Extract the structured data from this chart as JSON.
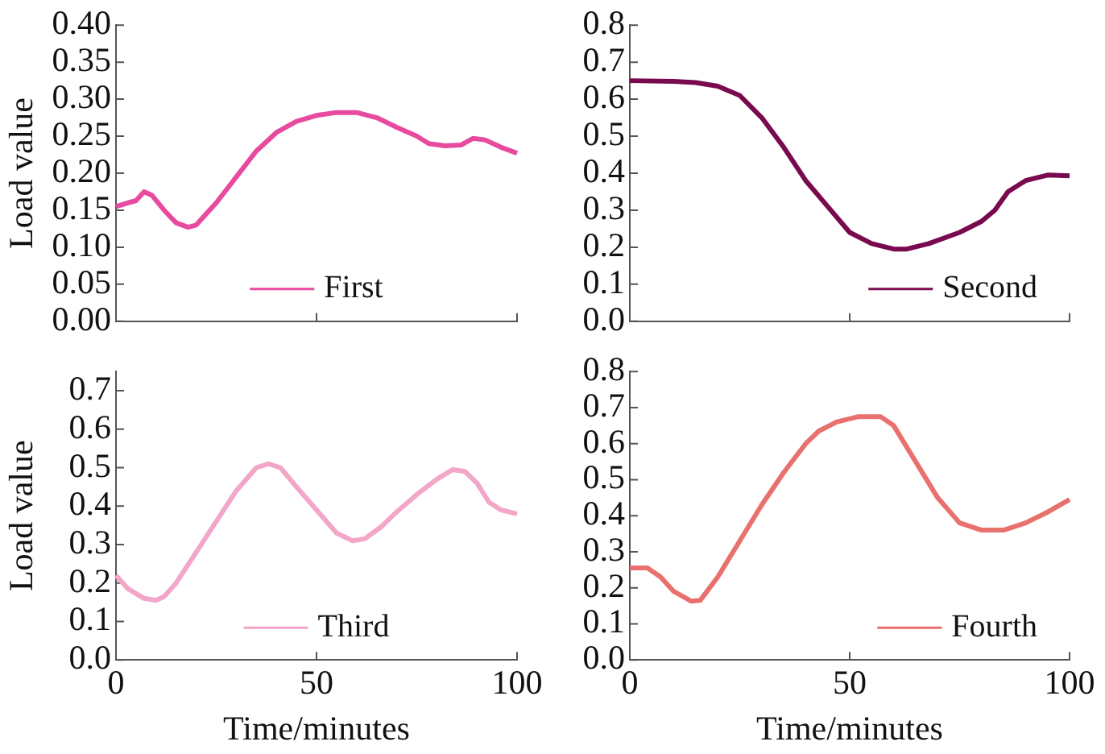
{
  "chart_data": [
    {
      "type": "line",
      "ylabel": "Load value",
      "xlim": [
        0,
        100
      ],
      "xticks": [
        0,
        50,
        100
      ],
      "ylim": [
        0,
        0.4
      ],
      "yticks": [
        {
          "value": 0,
          "label": "0.00"
        },
        {
          "value": 0.05,
          "label": "0.05"
        },
        {
          "value": 0.1,
          "label": "0.10"
        },
        {
          "value": 0.15,
          "label": "0.15"
        },
        {
          "value": 0.2,
          "label": "0.20"
        },
        {
          "value": 0.25,
          "label": "0.25"
        },
        {
          "value": 0.3,
          "label": "0.30"
        },
        {
          "value": 0.35,
          "label": "0.35"
        },
        {
          "value": 0.4,
          "label": "0.40"
        }
      ],
      "tick_labels": "y",
      "grid": false,
      "legend": "bottom",
      "marker": "none",
      "x": [
        0,
        3,
        5,
        7,
        9,
        12,
        15,
        18,
        20,
        25,
        30,
        35,
        40,
        45,
        50,
        55,
        60,
        65,
        70,
        75,
        78,
        82,
        86,
        89,
        92,
        96,
        100
      ],
      "series": [
        {
          "name": "First",
          "color": "#e84a9f",
          "values": [
            0.155,
            0.16,
            0.163,
            0.175,
            0.17,
            0.15,
            0.133,
            0.127,
            0.13,
            0.16,
            0.195,
            0.23,
            0.255,
            0.27,
            0.278,
            0.282,
            0.282,
            0.275,
            0.262,
            0.25,
            0.24,
            0.237,
            0.238,
            0.247,
            0.245,
            0.235,
            0.227
          ]
        }
      ]
    },
    {
      "type": "line",
      "xlim": [
        0,
        100
      ],
      "xticks": [
        0,
        50,
        100
      ],
      "ylim": [
        0,
        0.8
      ],
      "yticks": [
        {
          "value": 0,
          "label": "0.0"
        },
        {
          "value": 0.1,
          "label": "0.1"
        },
        {
          "value": 0.2,
          "label": "0.2"
        },
        {
          "value": 0.3,
          "label": "0.3"
        },
        {
          "value": 0.4,
          "label": "0.4"
        },
        {
          "value": 0.5,
          "label": "0.5"
        },
        {
          "value": 0.6,
          "label": "0.6"
        },
        {
          "value": 0.7,
          "label": "0.7"
        },
        {
          "value": 0.8,
          "label": "0.8"
        }
      ],
      "tick_labels": "y",
      "grid": false,
      "legend": "bottom right",
      "marker": "none",
      "x": [
        0,
        10,
        15,
        20,
        25,
        30,
        35,
        40,
        45,
        50,
        55,
        60,
        63,
        68,
        75,
        80,
        83,
        86,
        90,
        95,
        100
      ],
      "series": [
        {
          "name": "Second",
          "color": "#7a0a4f",
          "values": [
            0.65,
            0.648,
            0.645,
            0.635,
            0.61,
            0.55,
            0.47,
            0.38,
            0.31,
            0.24,
            0.21,
            0.195,
            0.195,
            0.21,
            0.24,
            0.27,
            0.3,
            0.35,
            0.38,
            0.395,
            0.393
          ]
        }
      ]
    },
    {
      "type": "line",
      "ylabel": "Load value",
      "xlabel": "Time/minutes",
      "xlim": [
        0,
        100
      ],
      "xticks": [
        0,
        50,
        100
      ],
      "ylim": [
        0,
        0.75
      ],
      "yticks": [
        {
          "value": 0,
          "label": "0.0"
        },
        {
          "value": 0.1,
          "label": "0.1"
        },
        {
          "value": 0.2,
          "label": "0.2"
        },
        {
          "value": 0.3,
          "label": "0.3"
        },
        {
          "value": 0.4,
          "label": "0.4"
        },
        {
          "value": 0.5,
          "label": "0.5"
        },
        {
          "value": 0.6,
          "label": "0.6"
        },
        {
          "value": 0.7,
          "label": "0.7"
        }
      ],
      "grid": false,
      "legend": "bottom",
      "marker": "none",
      "x": [
        0,
        3,
        7,
        10,
        12,
        15,
        20,
        25,
        30,
        35,
        38,
        41,
        45,
        50,
        55,
        59,
        62,
        66,
        70,
        75,
        80,
        84,
        87,
        90,
        93,
        96,
        100
      ],
      "series": [
        {
          "name": "Third",
          "color": "#f2a6c8",
          "values": [
            0.22,
            0.185,
            0.16,
            0.155,
            0.165,
            0.2,
            0.28,
            0.36,
            0.44,
            0.5,
            0.51,
            0.5,
            0.45,
            0.39,
            0.33,
            0.31,
            0.315,
            0.345,
            0.385,
            0.43,
            0.47,
            0.495,
            0.49,
            0.46,
            0.41,
            0.39,
            0.38
          ]
        }
      ]
    },
    {
      "type": "line",
      "xlabel": "Time/minutes",
      "xlim": [
        0,
        100
      ],
      "xticks": [
        0,
        50,
        100
      ],
      "ylim": [
        0,
        0.8
      ],
      "yticks": [
        {
          "value": 0,
          "label": "0.0"
        },
        {
          "value": 0.1,
          "label": "0.1"
        },
        {
          "value": 0.2,
          "label": "0.2"
        },
        {
          "value": 0.3,
          "label": "0.3"
        },
        {
          "value": 0.4,
          "label": "0.4"
        },
        {
          "value": 0.5,
          "label": "0.5"
        },
        {
          "value": 0.6,
          "label": "0.6"
        },
        {
          "value": 0.7,
          "label": "0.7"
        },
        {
          "value": 0.8,
          "label": "0.8"
        }
      ],
      "grid": false,
      "legend": "bottom right",
      "marker": "none",
      "x": [
        0,
        4,
        7,
        10,
        14,
        16,
        20,
        25,
        30,
        35,
        40,
        43,
        47,
        52,
        57,
        60,
        65,
        70,
        75,
        80,
        85,
        90,
        95,
        100
      ],
      "series": [
        {
          "name": "Fourth",
          "color": "#e8716e",
          "values": [
            0.255,
            0.255,
            0.23,
            0.19,
            0.163,
            0.165,
            0.23,
            0.33,
            0.43,
            0.52,
            0.6,
            0.635,
            0.66,
            0.675,
            0.675,
            0.65,
            0.55,
            0.45,
            0.38,
            0.36,
            0.36,
            0.38,
            0.41,
            0.445
          ]
        }
      ]
    }
  ]
}
